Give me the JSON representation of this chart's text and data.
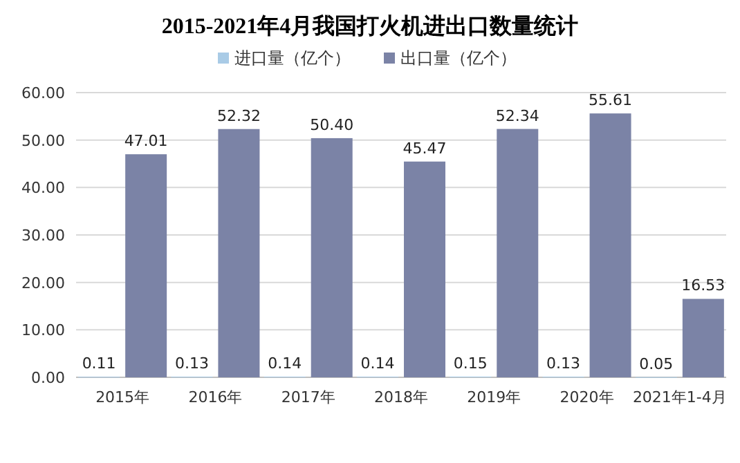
{
  "chart_data": {
    "type": "bar",
    "title": "2015-2021年4月我国打火机进出口数量统计",
    "categories": [
      "2015年",
      "2016年",
      "2017年",
      "2018年",
      "2019年",
      "2020年",
      "2021年1-4月"
    ],
    "series": [
      {
        "name": "进口量（亿个）",
        "color": "#a9cbe6",
        "values": [
          0.11,
          0.13,
          0.14,
          0.14,
          0.15,
          0.13,
          0.05
        ],
        "value_labels": [
          "0.11",
          "0.13",
          "0.14",
          "0.14",
          "0.15",
          "0.13",
          "0.05"
        ]
      },
      {
        "name": "出口量（亿个）",
        "color": "#7b83a6",
        "values": [
          47.01,
          52.32,
          50.4,
          45.47,
          52.34,
          55.61,
          16.53
        ],
        "value_labels": [
          "47.01",
          "52.32",
          "50.40",
          "45.47",
          "52.34",
          "55.61",
          "16.53"
        ]
      }
    ],
    "ylim": [
      0,
      60
    ],
    "yticks": [
      {
        "value": 0,
        "label": "0.00"
      },
      {
        "value": 10,
        "label": "10.00"
      },
      {
        "value": 20,
        "label": "20.00"
      },
      {
        "value": 30,
        "label": "30.00"
      },
      {
        "value": 40,
        "label": "40.00"
      },
      {
        "value": 50,
        "label": "50.00"
      },
      {
        "value": 60,
        "label": "60.00"
      }
    ],
    "grid": "y",
    "legend": "top"
  }
}
